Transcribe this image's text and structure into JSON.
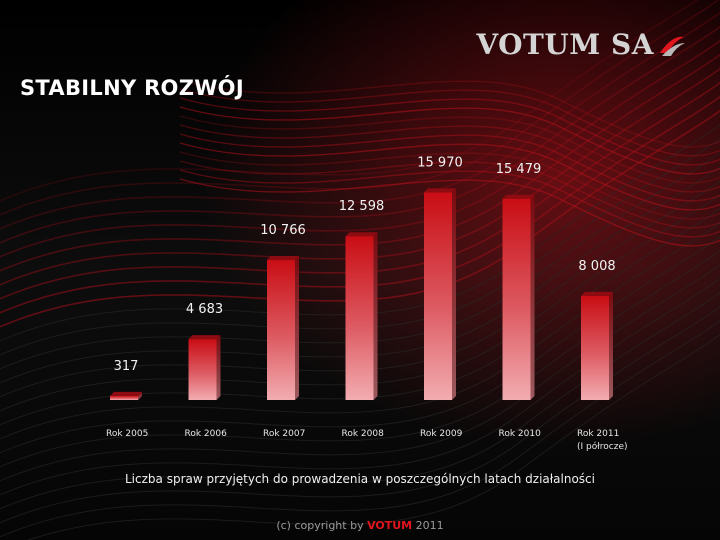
{
  "slide": {
    "title": "STABILNY ROZWÓJ",
    "logo_text": "VOTUM SA",
    "caption": "Liczba spraw przyjętych do prowadzenia w poszczególnych latach działalności",
    "footer_prefix": "(c) copyright by ",
    "footer_brand": "VOTUM",
    "footer_suffix": " 2011"
  },
  "colors": {
    "accent": "#e0161e",
    "bar_top": "#cc0d14",
    "bar_bottom": "#f0a3a7",
    "background": "#0b0b0b"
  },
  "chart_data": {
    "type": "bar",
    "categories": [
      "Rok 2005",
      "Rok 2006",
      "Rok 2007",
      "Rok 2008",
      "Rok 2009",
      "Rok 2010",
      "Rok 2011\n(I półrocze)"
    ],
    "values": [
      317,
      4683,
      10766,
      12598,
      15970,
      15479,
      8008
    ],
    "value_labels": [
      "317",
      "4 683",
      "10 766",
      "12 598",
      "15 970",
      "15 479",
      "8 008"
    ],
    "title": "",
    "xlabel": "",
    "ylabel": "",
    "ylim": [
      0,
      16000
    ],
    "grid": false,
    "legend": "none"
  }
}
